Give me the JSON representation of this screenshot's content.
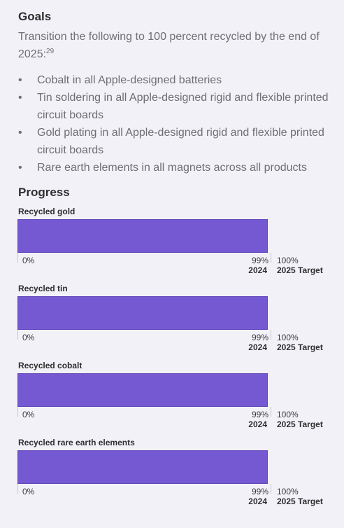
{
  "goals": {
    "title": "Goals",
    "intro": "Transition the following to 100 percent recycled by the end of 2025:",
    "footnote": "29",
    "bullet": "•",
    "items": [
      "Cobalt in all Apple-designed batteries",
      "Tin soldering in all Apple-designed rigid and flexible printed circuit boards",
      "Gold plating in all Apple-designed rigid and flexible printed circuit boards",
      "Rare earth elements in all magnets across all products"
    ]
  },
  "progress": {
    "title": "Progress",
    "bar_color": "#7559d2",
    "metrics": [
      {
        "label": "Recycled gold",
        "value": 0.99,
        "start_label": "0%",
        "current_label": "99%",
        "current_year": "2024",
        "target_label": "100%",
        "target_year": "2025 Target"
      },
      {
        "label": "Recycled tin",
        "value": 0.99,
        "start_label": "0%",
        "current_label": "99%",
        "current_year": "2024",
        "target_label": "100%",
        "target_year": "2025 Target"
      },
      {
        "label": "Recycled cobalt",
        "value": 0.99,
        "start_label": "0%",
        "current_label": "99%",
        "current_year": "2024",
        "target_label": "100%",
        "target_year": "2025 Target"
      },
      {
        "label": "Recycled rare earth elements",
        "value": 0.99,
        "start_label": "0%",
        "current_label": "99%",
        "current_year": "2024",
        "target_label": "100%",
        "target_year": "2025 Target"
      }
    ]
  }
}
